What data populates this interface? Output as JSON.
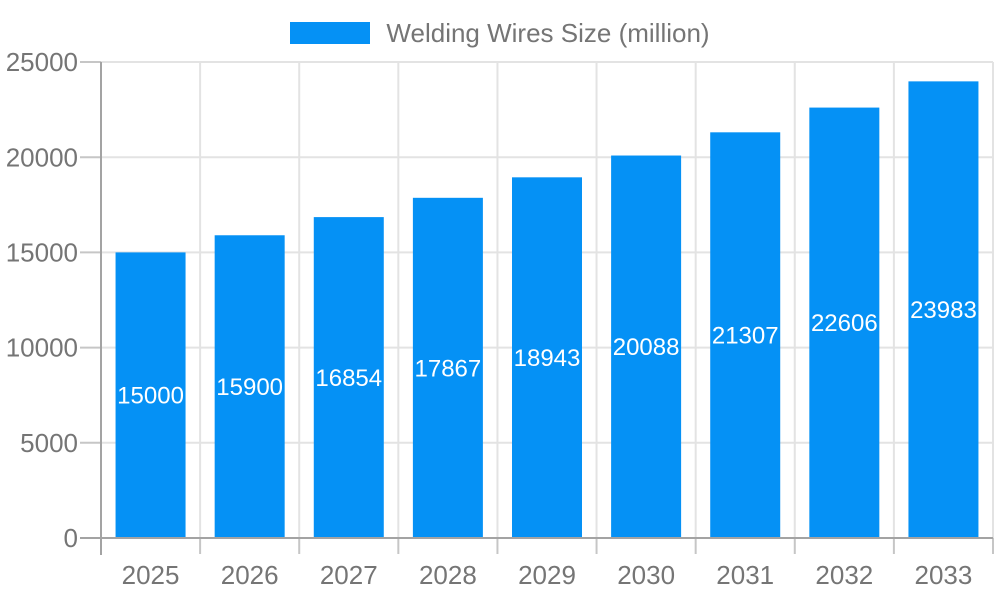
{
  "chart_data": {
    "type": "bar",
    "title": "",
    "categories": [
      "2025",
      "2026",
      "2027",
      "2028",
      "2029",
      "2030",
      "2031",
      "2032",
      "2033"
    ],
    "series": [
      {
        "name": "Welding Wires Size (million)",
        "color": "#0591f5",
        "values": [
          15000,
          15900,
          16854,
          17867,
          18943,
          20088,
          21307,
          22606,
          23983
        ]
      }
    ],
    "xlabel": "",
    "ylabel": "",
    "ylim": [
      0,
      25000
    ],
    "yticks": [
      0,
      5000,
      10000,
      15000,
      20000,
      25000
    ],
    "grid": true,
    "legend_position": "top",
    "value_labels": {
      "show": true,
      "position": "bar-center",
      "color": "#ffffff"
    },
    "colors": {
      "background": "#ffffff",
      "bar": "#0591f5",
      "axis_line": "#a3a3a3",
      "tick": "#c6c6c6",
      "gridline": "#e3e3e3",
      "axis_text": "#757575",
      "legend_text": "#757575",
      "value_label_text": "#ffffff"
    }
  }
}
